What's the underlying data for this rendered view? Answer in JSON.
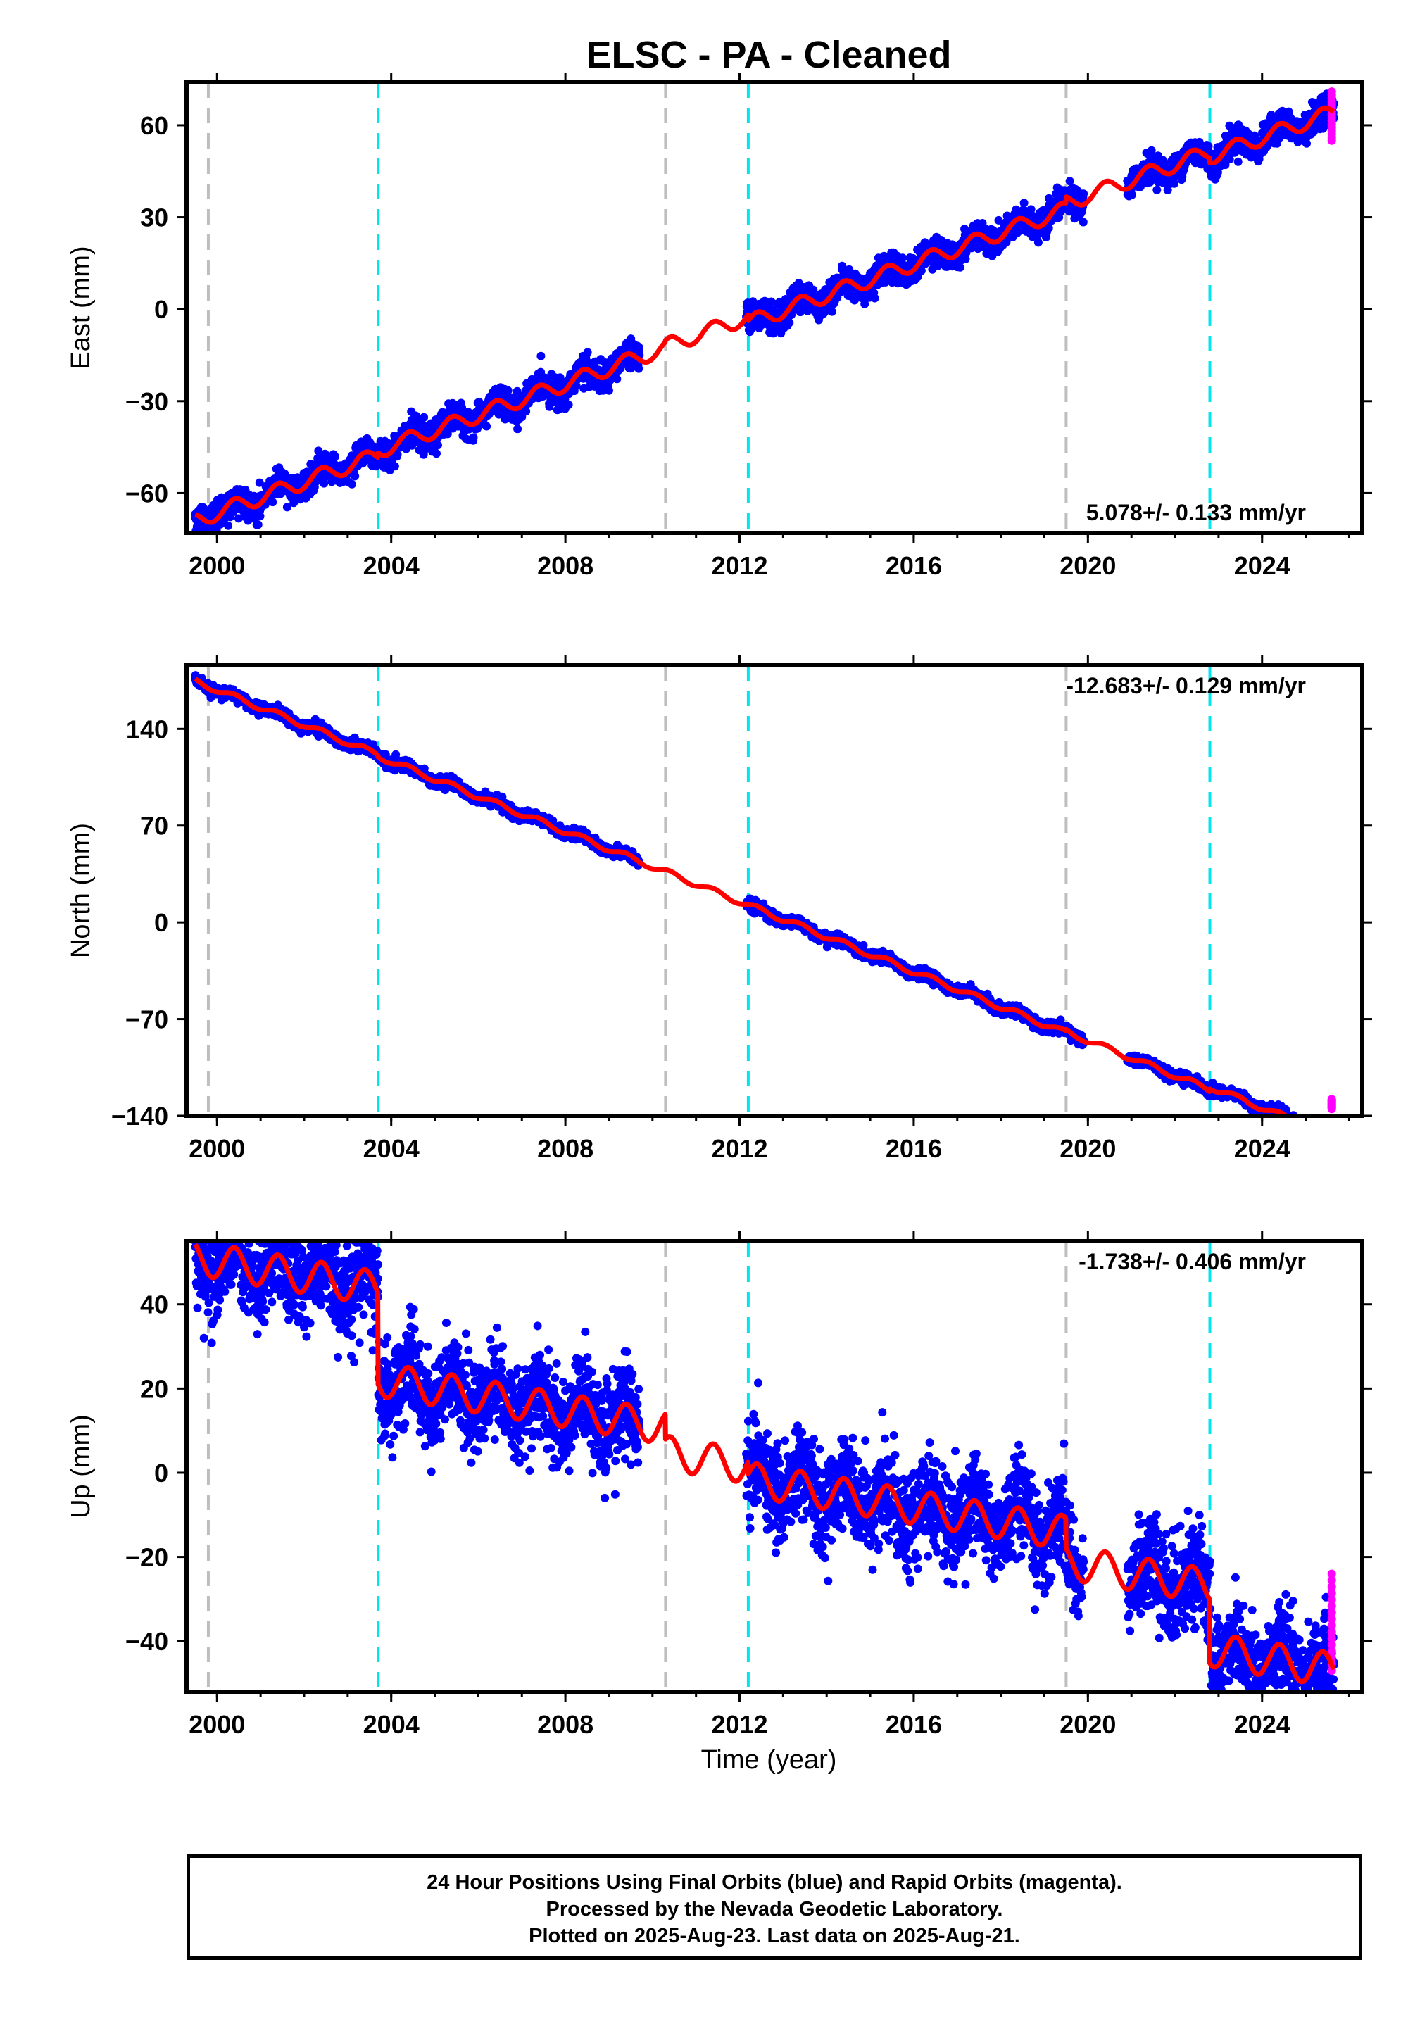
{
  "chart_data": {
    "type": "scatter",
    "title": "ELSC  - PA - Cleaned",
    "xlabel": "Time (year)",
    "xlim": [
      1999.3,
      2026.3
    ],
    "xticks": [
      2000,
      2004,
      2008,
      2012,
      2016,
      2020,
      2024
    ],
    "x_tick_labels": [
      "2000",
      "2004",
      "2008",
      "2012",
      "2016",
      "2020",
      "2024"
    ],
    "colors": {
      "final_orbits": "#0000ff",
      "rapid_orbits": "#ff00ff",
      "model_fit": "#ff0000",
      "equipment_change": "#00e5ee",
      "earthquake": "#bebebe"
    },
    "vertical_lines": {
      "gray": [
        1999.8,
        2010.3,
        2019.5
      ],
      "cyan": [
        2003.7,
        2012.2,
        2022.8
      ]
    },
    "data_gaps": [
      [
        2009.7,
        2012.15
      ],
      [
        2019.9,
        2020.9
      ]
    ],
    "panels": [
      {
        "name": "east",
        "ylabel": "East (mm)",
        "ylim": [
          -73,
          74
        ],
        "yticks": [
          -60,
          -30,
          0,
          30,
          60
        ],
        "y_tick_labels": [
          "−60",
          "−30",
          "0",
          "30",
          "60"
        ],
        "rate": "5.078+/- 0.133 mm/yr",
        "rate_position": "bottom-right",
        "trend": {
          "t0": 2012.0,
          "y0": -4.0,
          "slope": 5.078
        },
        "segments": [
          {
            "start": 1999.5,
            "end": 2003.7,
            "offset": -1.5
          },
          {
            "start": 2003.7,
            "end": 2010.3,
            "offset": 0
          },
          {
            "start": 2010.3,
            "end": 2012.2,
            "offset": 0.5
          },
          {
            "start": 2012.2,
            "end": 2019.5,
            "offset": -1.5
          },
          {
            "start": 2019.5,
            "end": 2022.8,
            "offset": 0.5
          },
          {
            "start": 2022.8,
            "end": 2025.65,
            "offset": -1.0
          }
        ],
        "seasonal_amplitude": 2.5,
        "scatter_spread": 2.2,
        "rapid_range": [
          55,
          71
        ]
      },
      {
        "name": "north",
        "ylabel": "North (mm)",
        "ylim": [
          -140,
          186
        ],
        "yticks": [
          -140,
          -70,
          0,
          70,
          140
        ],
        "y_tick_labels": [
          "−140",
          "−70",
          "0",
          "70",
          "140"
        ],
        "rate": "-12.683+/- 0.129 mm/yr",
        "rate_position": "top-right",
        "trend": {
          "t0": 2012.0,
          "y0": 15.0,
          "slope": -12.683
        },
        "segments": [
          {
            "start": 1999.5,
            "end": 2003.7,
            "offset": 1.0
          },
          {
            "start": 2003.7,
            "end": 2010.3,
            "offset": 0
          },
          {
            "start": 2010.3,
            "end": 2012.2,
            "offset": 0
          },
          {
            "start": 2012.2,
            "end": 2019.5,
            "offset": 0
          },
          {
            "start": 2019.5,
            "end": 2022.8,
            "offset": 1.0
          },
          {
            "start": 2022.8,
            "end": 2025.65,
            "offset": 3.0
          }
        ],
        "seasonal_amplitude": 2.0,
        "scatter_spread": 1.8,
        "rapid_range": [
          -135,
          -128
        ]
      },
      {
        "name": "up",
        "ylabel": "Up (mm)",
        "ylim": [
          -52,
          55
        ],
        "yticks": [
          -40,
          -20,
          0,
          20,
          40
        ],
        "y_tick_labels": [
          "−40",
          "−20",
          "0",
          "20",
          "40"
        ],
        "rate": "-1.738+/- 0.406 mm/yr",
        "rate_position": "top-right",
        "trend": {
          "t0": 2012.0,
          "y0": -1.7,
          "slope": -1.738
        },
        "segments": [
          {
            "start": 1999.5,
            "end": 2003.7,
            "offset": 31.0
          },
          {
            "start": 2003.7,
            "end": 2010.3,
            "offset": 9.5
          },
          {
            "start": 2010.3,
            "end": 2012.2,
            "offset": 3.5
          },
          {
            "start": 2012.2,
            "end": 2019.5,
            "offset": 0.5
          },
          {
            "start": 2019.5,
            "end": 2022.8,
            "offset": -6.5
          },
          {
            "start": 2022.8,
            "end": 2025.65,
            "offset": -21.5
          }
        ],
        "seasonal_amplitude": 4.0,
        "scatter_spread": 5.5,
        "rapid_range": [
          -47,
          -24
        ]
      }
    ]
  },
  "footer": {
    "line1": "24 Hour Positions Using Final Orbits (blue) and Rapid Orbits (magenta).",
    "line2": "Processed by the Nevada Geodetic Laboratory.",
    "line3": "Plotted on 2025-Aug-23. Last data on 2025-Aug-21."
  }
}
